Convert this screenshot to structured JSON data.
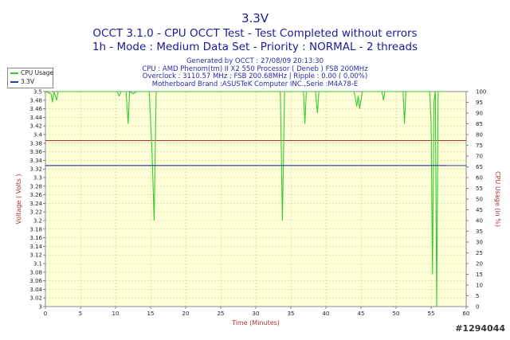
{
  "chart_data": {
    "type": "line",
    "title": "3.3V",
    "subtitle_lines": [
      "OCCT 3.1.0 - CPU OCCT Test - Test Completed without errors",
      "1h - Mode : Medium Data Set - Priority : NORMAL - 2 threads"
    ],
    "info_lines": [
      "Generated by OCCT : 27/08/09 20:13:30",
      "CPU : AMD Phenom(tm) II X2 550 Processor ( Deneb ) FSB 200MHz",
      "Overclock : 3110.57 MHz ; FSB 200.68MHz | Ripple : 0.00 ( 0.00%)",
      "Motherboard Brand :ASUSTeK Computer INC.,Serie :M4A78-E"
    ],
    "xlabel": "Time (Minutes)",
    "ylabel_left": "Voltage ( Volts )",
    "ylabel_right": "CPU Usage (in %)",
    "xlim": [
      0,
      60
    ],
    "ylim_left": [
      3.0,
      3.5
    ],
    "ylim_right": [
      0,
      100
    ],
    "x_ticks": [
      "0",
      "5",
      "10",
      "15",
      "20",
      "25",
      "30",
      "35",
      "40",
      "45",
      "50",
      "55",
      "60"
    ],
    "y_ticks_left": [
      "3.5",
      "3.48",
      "3.46",
      "3.44",
      "3.42",
      "3.4",
      "3.38",
      "3.36",
      "3.34",
      "3.32",
      "3.3",
      "3.28",
      "3.26",
      "3.24",
      "3.22",
      "3.2",
      "3.18",
      "3.16",
      "3.14",
      "3.12",
      "3.1",
      "3.08",
      "3.06",
      "3.04",
      "3.02",
      "3"
    ],
    "y_ticks_right": [
      "100",
      "95",
      "90",
      "85",
      "80",
      "75",
      "70",
      "65",
      "60",
      "55",
      "50",
      "45",
      "40",
      "35",
      "30",
      "25",
      "20",
      "15",
      "10",
      "5",
      "0"
    ],
    "reference_lines": [
      {
        "name": "upper_limit",
        "value": 3.386,
        "color": "#b03030"
      },
      {
        "name": "lower_limit",
        "value": 3.328,
        "color": "#2a3aa8"
      }
    ],
    "legend_position": "top-left",
    "grid": true,
    "series": [
      {
        "name": "CPU Usage",
        "axis": "right",
        "color": "#33cc33",
        "points": [
          [
            0,
            100
          ],
          [
            0.8,
            99
          ],
          [
            1.0,
            95
          ],
          [
            1.2,
            100
          ],
          [
            1.6,
            96
          ],
          [
            1.8,
            100
          ],
          [
            3,
            100
          ],
          [
            5,
            100
          ],
          [
            7,
            100
          ],
          [
            9,
            100
          ],
          [
            10.2,
            100
          ],
          [
            10.5,
            98
          ],
          [
            10.8,
            100
          ],
          [
            11.5,
            100
          ],
          [
            11.8,
            85
          ],
          [
            12.0,
            100
          ],
          [
            12.5,
            99
          ],
          [
            13,
            100
          ],
          [
            14.8,
            100
          ],
          [
            15.2,
            72
          ],
          [
            15.5,
            40
          ],
          [
            15.8,
            100
          ],
          [
            16.5,
            100
          ],
          [
            20,
            100
          ],
          [
            25,
            100
          ],
          [
            30,
            100
          ],
          [
            33.5,
            100
          ],
          [
            33.8,
            40
          ],
          [
            34.1,
            100
          ],
          [
            35,
            100
          ],
          [
            36.8,
            100
          ],
          [
            37.0,
            85
          ],
          [
            37.2,
            100
          ],
          [
            38.5,
            100
          ],
          [
            38.8,
            90
          ],
          [
            39.0,
            100
          ],
          [
            42,
            100
          ],
          [
            44.0,
            100
          ],
          [
            44.2,
            97
          ],
          [
            44.4,
            93
          ],
          [
            44.6,
            98
          ],
          [
            44.8,
            92
          ],
          [
            45.0,
            96
          ],
          [
            45.2,
            100
          ],
          [
            48,
            100
          ],
          [
            48.2,
            96
          ],
          [
            48.4,
            100
          ],
          [
            51,
            100
          ],
          [
            51.2,
            85
          ],
          [
            51.4,
            100
          ],
          [
            54.8,
            100
          ],
          [
            55.0,
            86
          ],
          [
            55.2,
            15
          ],
          [
            55.4,
            95
          ],
          [
            55.6,
            100
          ],
          [
            55.8,
            0
          ],
          [
            56.0,
            100
          ],
          [
            57,
            100
          ]
        ]
      },
      {
        "name": "3.3V",
        "axis": "left",
        "color": "#2a3aa8",
        "points": [
          [
            0,
            3.328
          ],
          [
            57,
            3.328
          ]
        ]
      }
    ]
  },
  "watermark": "#1294044"
}
